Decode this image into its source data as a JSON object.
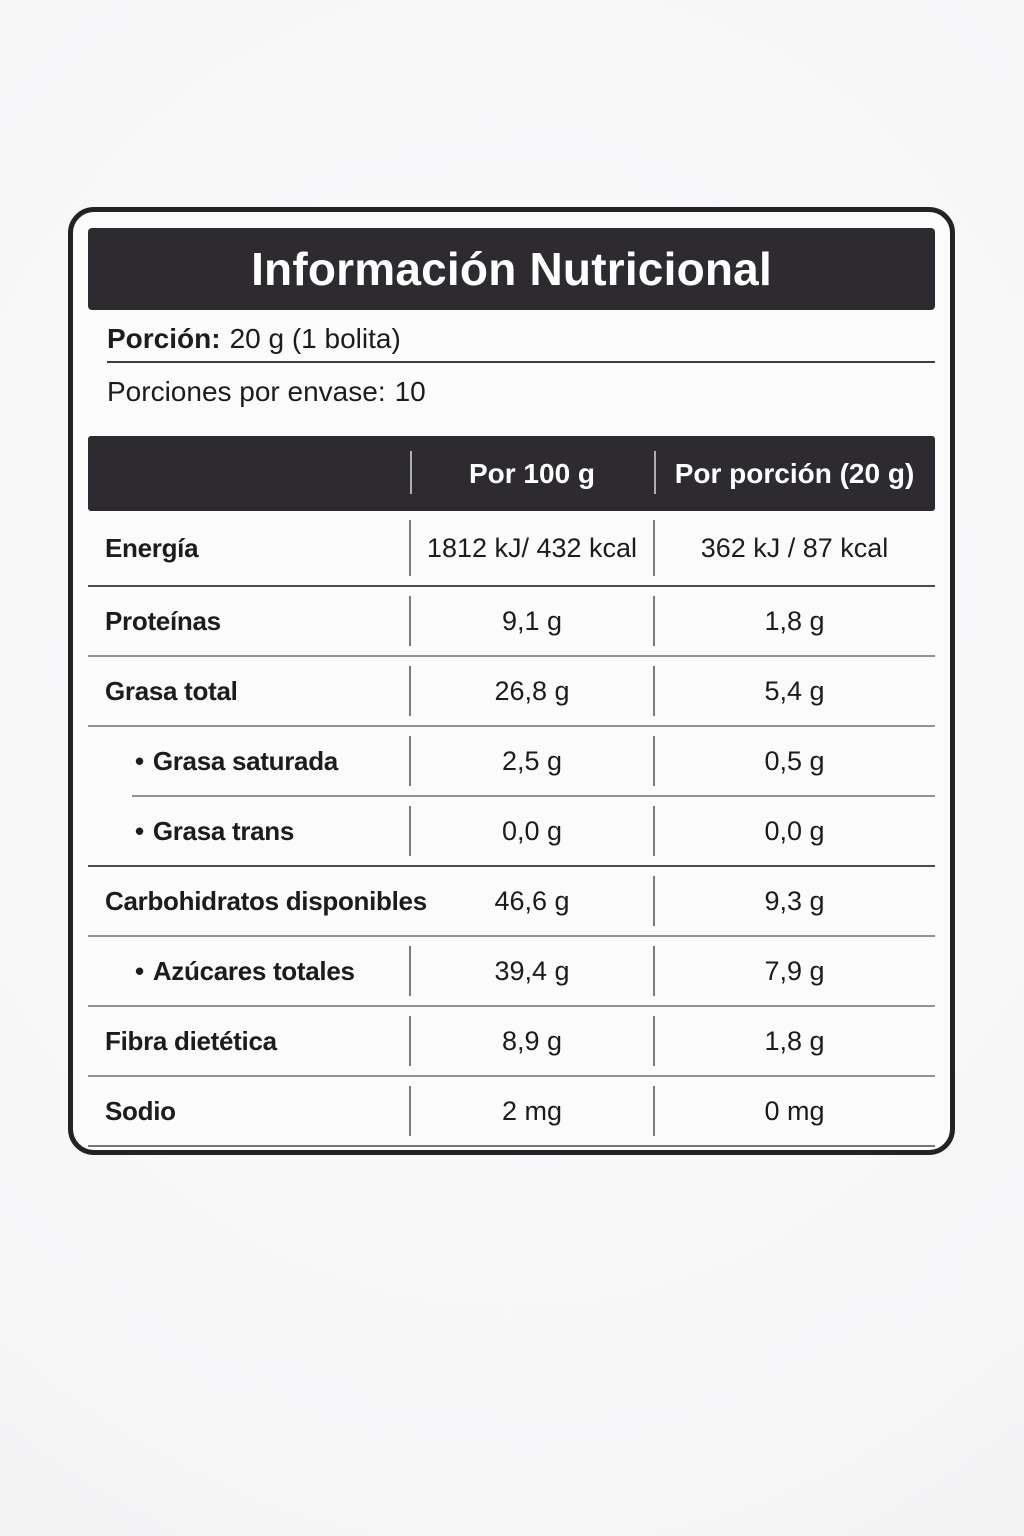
{
  "nutrition": {
    "title": "Información Nutricional",
    "serving_label": "Porción:",
    "serving_value": "20 g (1 bolita)",
    "servings_label": "Porciones por envase:",
    "servings_value": "10",
    "bullet": "•",
    "columns": {
      "per100": "Por 100 g",
      "portion": "Por porción (20 g)"
    },
    "rows": [
      {
        "name": "Energía",
        "per100": "1812 kJ/ 432 kcal",
        "portion": "362 kJ / 87 kcal"
      },
      {
        "name": "Proteínas",
        "per100": "9,1 g",
        "portion": "1,8 g"
      },
      {
        "name": "Grasa total",
        "per100": "26,8 g",
        "portion": "5,4 g"
      },
      {
        "name": "Grasa saturada",
        "per100": "2,5 g",
        "portion": "0,5 g"
      },
      {
        "name": "Grasa trans",
        "per100": "0,0 g",
        "portion": "0,0 g"
      },
      {
        "name": "Carbohidratos disponibles",
        "per100": "46,6 g",
        "portion": "9,3 g"
      },
      {
        "name": "Azúcares totales",
        "per100": "39,4 g",
        "portion": "7,9 g"
      },
      {
        "name": "Fibra dietética",
        "per100": "8,9 g",
        "portion": "1,8 g"
      },
      {
        "name": "Sodio",
        "per100": "2 mg",
        "portion": "0 mg"
      }
    ],
    "colors": {
      "bar": "#2d2b2f",
      "border": "#232325",
      "card_bg": "#fbfbfb",
      "page_bg": "#f6f6f7",
      "text": "#1c1c1e",
      "divider": "#929295",
      "divider_strong": "#4d4d4f"
    }
  }
}
